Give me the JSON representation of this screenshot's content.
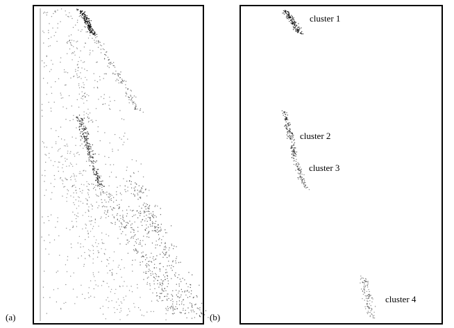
{
  "panels": [
    {
      "label": "(a)"
    },
    {
      "label": "(b)",
      "clusters": [
        "cluster 1",
        "cluster 2",
        "cluster 3",
        "cluster 4"
      ]
    }
  ]
}
